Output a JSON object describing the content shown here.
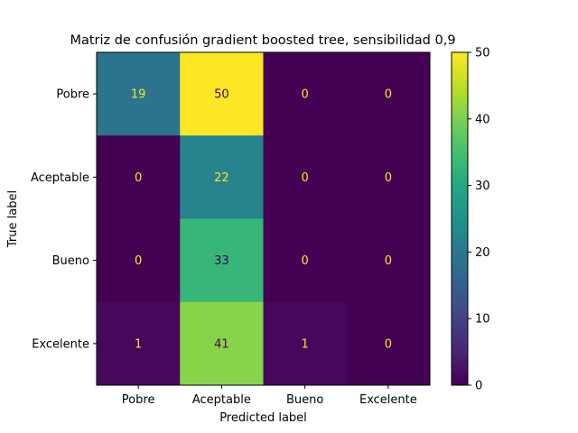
{
  "chart_data": {
    "type": "heatmap",
    "title": "Matriz de confusión gradient boosted tree, sensibilidad 0,9",
    "xlabel": "Predicted label",
    "ylabel": "True label",
    "x_categories": [
      "Pobre",
      "Aceptable",
      "Bueno",
      "Excelente"
    ],
    "y_categories": [
      "Pobre",
      "Aceptable",
      "Bueno",
      "Excelente"
    ],
    "matrix": [
      [
        19,
        50,
        0,
        0
      ],
      [
        0,
        22,
        0,
        0
      ],
      [
        0,
        33,
        0,
        0
      ],
      [
        1,
        41,
        1,
        0
      ]
    ],
    "colormap": "viridis",
    "colorbar": {
      "range": [
        0,
        50
      ],
      "ticks": [
        0,
        10,
        20,
        30,
        40,
        50
      ]
    },
    "grid": false
  }
}
